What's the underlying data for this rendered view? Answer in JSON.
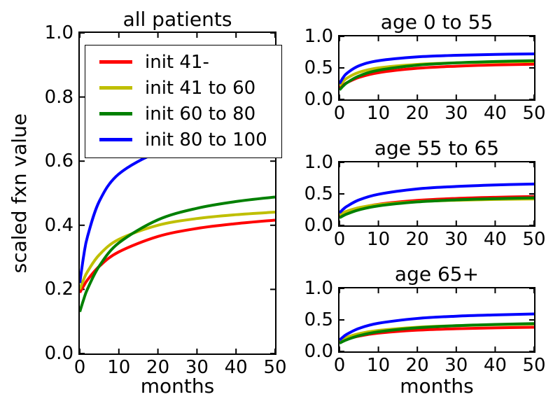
{
  "figure": {
    "background": "#ffffff",
    "axis_color": "#000000"
  },
  "colors": {
    "red": "#ff0000",
    "yellow": "#bfbf00",
    "green": "#008000",
    "blue": "#0000ff"
  },
  "legend": {
    "position": "upper-left-inside-first-plot",
    "entries": [
      {
        "label": "init 41-",
        "color": "#ff0000"
      },
      {
        "label": "init 41 to 60",
        "color": "#bfbf00"
      },
      {
        "label": "init 60 to 80",
        "color": "#008000"
      },
      {
        "label": "init 80 to 100",
        "color": "#0000ff"
      }
    ]
  },
  "chart_data": [
    {
      "type": "line",
      "title": "all patients",
      "xlabel": "months",
      "ylabel": "scaled fxn value",
      "xlim": [
        0,
        50
      ],
      "ylim": [
        0.0,
        1.0
      ],
      "grid": false,
      "xticks": {
        "values": [
          0,
          10,
          20,
          30,
          40,
          50
        ],
        "labels": [
          "0",
          "10",
          "20",
          "30",
          "40",
          "50"
        ]
      },
      "yticks": {
        "values": [
          0.0,
          0.2,
          0.4,
          0.6,
          0.8,
          1.0
        ],
        "labels": [
          "0.0",
          "0.2",
          "0.4",
          "0.6",
          "0.8",
          "1.0"
        ]
      },
      "x": [
        0,
        1,
        2,
        5,
        10,
        20,
        30,
        40,
        50
      ],
      "series": [
        {
          "name": "init 41-",
          "color": "#ff0000",
          "y": [
            0.19,
            0.211,
            0.23,
            0.272,
            0.317,
            0.365,
            0.39,
            0.405,
            0.416
          ]
        },
        {
          "name": "init 41 to 60",
          "color": "#bfbf00",
          "y": [
            0.2,
            0.231,
            0.256,
            0.308,
            0.356,
            0.4,
            0.421,
            0.433,
            0.441
          ]
        },
        {
          "name": "init 60 to 80",
          "color": "#008000",
          "y": [
            0.13,
            0.169,
            0.202,
            0.273,
            0.345,
            0.417,
            0.453,
            0.474,
            0.488
          ]
        },
        {
          "name": "init 80 to 100",
          "color": "#0000ff",
          "y": [
            0.22,
            0.305,
            0.366,
            0.475,
            0.56,
            0.628,
            0.657,
            0.673,
            0.684
          ]
        }
      ]
    },
    {
      "type": "line",
      "title": "age 0 to 55",
      "xlabel": "",
      "ylabel": "",
      "xlim": [
        0,
        50
      ],
      "ylim": [
        0.0,
        1.0
      ],
      "grid": false,
      "xticks": {
        "values": [
          0,
          10,
          20,
          30,
          40,
          50
        ],
        "labels": [
          "0",
          "10",
          "20",
          "30",
          "40",
          "50"
        ]
      },
      "yticks": {
        "values": [
          0.0,
          0.5,
          1.0
        ],
        "labels": [
          "0.0",
          "0.5",
          "1.0"
        ]
      },
      "x": [
        0,
        1,
        2,
        5,
        10,
        20,
        30,
        40,
        50
      ],
      "series": [
        {
          "name": "init 41-",
          "color": "#ff0000",
          "y": [
            0.18,
            0.229,
            0.268,
            0.349,
            0.424,
            0.494,
            0.527,
            0.547,
            0.559
          ]
        },
        {
          "name": "init 41 to 60",
          "color": "#bfbf00",
          "y": [
            0.22,
            0.29,
            0.34,
            0.43,
            0.5,
            0.556,
            0.58,
            0.593,
            0.602
          ]
        },
        {
          "name": "init 60 to 80",
          "color": "#008000",
          "y": [
            0.15,
            0.216,
            0.268,
            0.371,
            0.462,
            0.543,
            0.58,
            0.601,
            0.615
          ]
        },
        {
          "name": "init 80 to 100",
          "color": "#0000ff",
          "y": [
            0.25,
            0.352,
            0.42,
            0.533,
            0.614,
            0.675,
            0.7,
            0.714,
            0.722
          ]
        }
      ]
    },
    {
      "type": "line",
      "title": "age 55 to 65",
      "xlabel": "",
      "ylabel": "",
      "xlim": [
        0,
        50
      ],
      "ylim": [
        0.0,
        1.0
      ],
      "grid": false,
      "xticks": {
        "values": [
          0,
          10,
          20,
          30,
          40,
          50
        ],
        "labels": [
          "0",
          "10",
          "20",
          "30",
          "40",
          "50"
        ]
      },
      "yticks": {
        "values": [
          0.0,
          0.5,
          1.0
        ],
        "labels": [
          "0.0",
          "0.5",
          "1.0"
        ]
      },
      "x": [
        0,
        1,
        2,
        5,
        10,
        20,
        30,
        40,
        50
      ],
      "series": [
        {
          "name": "init 41-",
          "color": "#ff0000",
          "y": [
            0.15,
            0.184,
            0.212,
            0.273,
            0.335,
            0.397,
            0.428,
            0.446,
            0.458
          ]
        },
        {
          "name": "init 41 to 60",
          "color": "#bfbf00",
          "y": [
            0.17,
            0.202,
            0.228,
            0.282,
            0.331,
            0.377,
            0.399,
            0.412,
            0.42
          ]
        },
        {
          "name": "init 60 to 80",
          "color": "#008000",
          "y": [
            0.12,
            0.155,
            0.183,
            0.247,
            0.31,
            0.373,
            0.405,
            0.424,
            0.437
          ]
        },
        {
          "name": "init 80 to 100",
          "color": "#0000ff",
          "y": [
            0.2,
            0.259,
            0.306,
            0.404,
            0.494,
            0.579,
            0.618,
            0.642,
            0.657
          ]
        }
      ]
    },
    {
      "type": "line",
      "title": "age 65+",
      "xlabel": "months",
      "ylabel": "",
      "xlim": [
        0,
        50
      ],
      "ylim": [
        0.0,
        1.0
      ],
      "grid": false,
      "xticks": {
        "values": [
          0,
          10,
          20,
          30,
          40,
          50
        ],
        "labels": [
          "0",
          "10",
          "20",
          "30",
          "40",
          "50"
        ]
      },
      "yticks": {
        "values": [
          0.0,
          0.5,
          1.0
        ],
        "labels": [
          "0.0",
          "0.5",
          "1.0"
        ]
      },
      "x": [
        0,
        1,
        2,
        5,
        10,
        20,
        30,
        40,
        50
      ],
      "series": [
        {
          "name": "init 41-",
          "color": "#ff0000",
          "y": [
            0.15,
            0.175,
            0.197,
            0.243,
            0.29,
            0.337,
            0.36,
            0.374,
            0.383
          ]
        },
        {
          "name": "init 41 to 60",
          "color": "#bfbf00",
          "y": [
            0.17,
            0.201,
            0.226,
            0.281,
            0.333,
            0.384,
            0.408,
            0.423,
            0.433
          ]
        },
        {
          "name": "init 60 to 80",
          "color": "#008000",
          "y": [
            0.13,
            0.162,
            0.188,
            0.249,
            0.311,
            0.375,
            0.408,
            0.428,
            0.441
          ]
        },
        {
          "name": "init 80 to 100",
          "color": "#0000ff",
          "y": [
            0.18,
            0.233,
            0.276,
            0.365,
            0.447,
            0.523,
            0.559,
            0.579,
            0.594
          ]
        }
      ]
    }
  ]
}
